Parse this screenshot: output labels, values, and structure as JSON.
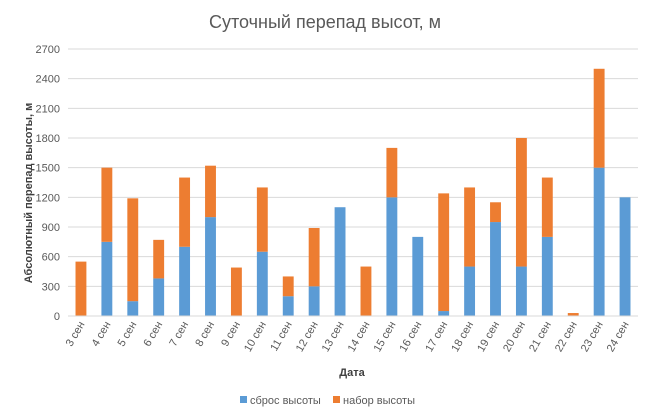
{
  "chart_data": {
    "type": "bar",
    "stacked": true,
    "title": "Суточный перепад высот, м",
    "xlabel": "Дата",
    "ylabel": "Абсолютный перепад высоты, м",
    "ylim": [
      0,
      2700
    ],
    "yticks": [
      0,
      300,
      600,
      900,
      1200,
      1500,
      1800,
      2100,
      2400,
      2700
    ],
    "grid": true,
    "legend_position": "bottom",
    "categories": [
      "3 сен",
      "4 сен",
      "5 сен",
      "6 сен",
      "7 сен",
      "8 сен",
      "9 сен",
      "10 сен",
      "11 сен",
      "12 сен",
      "13 сен",
      "14 сен",
      "15 сен",
      "16 сен",
      "17 сен",
      "18 сен",
      "19 сен",
      "20 сен",
      "21 сен",
      "22 сен",
      "23 сен",
      "24 сен"
    ],
    "series": [
      {
        "name": "сброс высоты",
        "color": "#5b9bd5",
        "values": [
          0,
          750,
          150,
          380,
          700,
          1000,
          0,
          650,
          200,
          300,
          1100,
          0,
          1200,
          800,
          50,
          500,
          950,
          500,
          800,
          0,
          1500,
          1200
        ]
      },
      {
        "name": "набор высоты",
        "color": "#ed7d31",
        "values": [
          550,
          750,
          1040,
          390,
          700,
          520,
          490,
          650,
          200,
          590,
          0,
          500,
          500,
          0,
          1190,
          800,
          200,
          1300,
          600,
          30,
          1000,
          0
        ]
      }
    ]
  }
}
